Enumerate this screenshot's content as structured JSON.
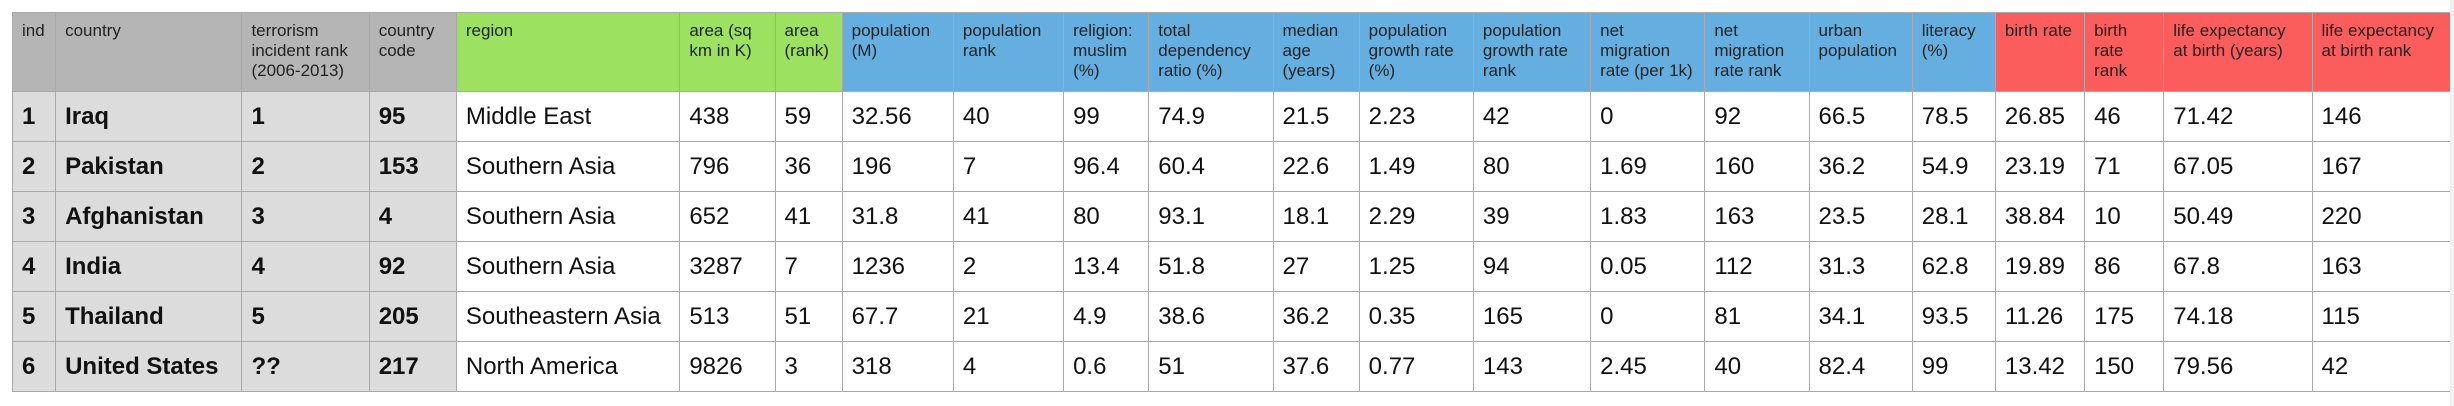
{
  "colors": {
    "id_header": "#b5b5b5",
    "region_header": "#9ce160",
    "population_header": "#64afdf",
    "vital_header": "#fb5d5d",
    "frozen_column_fill": "#dcdcdc"
  },
  "columns": [
    "ind",
    "country",
    "terrorism incident rank (2006-2013)",
    "country code",
    "region",
    "area (sq km in K)",
    "area (rank)",
    "population (M)",
    "population rank",
    "religion: muslim (%)",
    "total dependency ratio (%)",
    "median age (years)",
    "population growth rate (%)",
    "population growth rate rank",
    "net migration rate (per 1k)",
    "net migration rate rank",
    "urban population",
    "literacy (%)",
    "birth rate",
    "birth rate rank",
    "life expectancy at birth (years)",
    "life expectancy at birth rank"
  ],
  "rows": [
    [
      "1",
      "Iraq",
      "1",
      "95",
      "Middle East",
      "438",
      "59",
      "32.56",
      "40",
      "99",
      "74.9",
      "21.5",
      "2.23",
      "42",
      "0",
      "92",
      "66.5",
      "78.5",
      "26.85",
      "46",
      "71.42",
      "146"
    ],
    [
      "2",
      "Pakistan",
      "2",
      "153",
      "Southern Asia",
      "796",
      "36",
      "196",
      "7",
      "96.4",
      "60.4",
      "22.6",
      "1.49",
      "80",
      "1.69",
      "160",
      "36.2",
      "54.9",
      "23.19",
      "71",
      "67.05",
      "167"
    ],
    [
      "3",
      "Afghanistan",
      "3",
      "4",
      "Southern Asia",
      "652",
      "41",
      "31.8",
      "41",
      "80",
      "93.1",
      "18.1",
      "2.29",
      "39",
      "1.83",
      "163",
      "23.5",
      "28.1",
      "38.84",
      "10",
      "50.49",
      "220"
    ],
    [
      "4",
      "India",
      "4",
      "92",
      "Southern Asia",
      "3287",
      "7",
      "1236",
      "2",
      "13.4",
      "51.8",
      "27",
      "1.25",
      "94",
      "0.05",
      "112",
      "31.3",
      "62.8",
      "19.89",
      "86",
      "67.8",
      "163"
    ],
    [
      "5",
      "Thailand",
      "5",
      "205",
      "Southeastern Asia",
      "513",
      "51",
      "67.7",
      "21",
      "4.9",
      "38.6",
      "36.2",
      "0.35",
      "165",
      "0",
      "81",
      "34.1",
      "93.5",
      "11.26",
      "175",
      "74.18",
      "115"
    ],
    [
      "6",
      "United States",
      "??",
      "217",
      "North America",
      "9826",
      "3",
      "318",
      "4",
      "0.6",
      "51",
      "37.6",
      "0.77",
      "143",
      "2.45",
      "40",
      "82.4",
      "99",
      "13.42",
      "150",
      "79.56",
      "42"
    ]
  ]
}
